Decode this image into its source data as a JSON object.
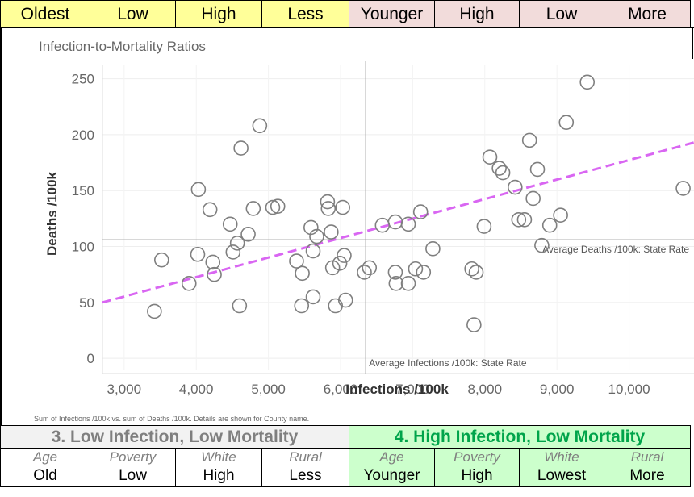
{
  "top_legend": [
    {
      "label": "Oldest",
      "color": "yellow"
    },
    {
      "label": "Low",
      "color": "yellow"
    },
    {
      "label": "High",
      "color": "yellow"
    },
    {
      "label": "Less",
      "color": "yellow"
    },
    {
      "label": "Younger",
      "color": "pink"
    },
    {
      "label": "High",
      "color": "pink"
    },
    {
      "label": "Low",
      "color": "pink"
    },
    {
      "label": "More",
      "color": "pink"
    }
  ],
  "colors": {
    "yellow": "#ffff99",
    "pink": "#f2dcdb",
    "quad3_bg": "#f2f2f2",
    "quad4_bg": "#ccffcc",
    "quad4_title": "#00a44a",
    "trend": "#d966f2",
    "marker": "#7f7f7f"
  },
  "chart_data": {
    "type": "scatter",
    "title": "Infection-to-Mortality Ratios",
    "xlabel": "Infections /100k",
    "ylabel": "Deaths /100k",
    "xlim": [
      2700,
      10900
    ],
    "ylim": [
      -10,
      262
    ],
    "xticks": [
      3000,
      4000,
      5000,
      6000,
      7000,
      8000,
      9000,
      10000
    ],
    "xtick_labels": [
      "3,000",
      "4,000",
      "5,000",
      "6,000",
      "7,000",
      "8,000",
      "9,000",
      "10,000"
    ],
    "yticks": [
      0,
      50,
      100,
      150,
      200,
      250
    ],
    "ytick_labels": [
      "0",
      "50",
      "100",
      "150",
      "200",
      "250"
    ],
    "ref_x": 6350,
    "ref_y": 106,
    "ref_x_label": "Average Infections /100k: State Rate",
    "ref_y_label": "Average Deaths /100k: State Rate",
    "trend": {
      "x0": 2700,
      "y0": 50,
      "x1": 10900,
      "y1": 193
    },
    "footnote": "Sum of Infections /100k vs. sum of Deaths /100k.  Details are shown for County name.",
    "points": [
      {
        "x": 3420,
        "y": 42
      },
      {
        "x": 3520,
        "y": 88
      },
      {
        "x": 3900,
        "y": 67
      },
      {
        "x": 4020,
        "y": 93
      },
      {
        "x": 4030,
        "y": 151
      },
      {
        "x": 4190,
        "y": 133
      },
      {
        "x": 4230,
        "y": 86
      },
      {
        "x": 4250,
        "y": 75
      },
      {
        "x": 4470,
        "y": 120
      },
      {
        "x": 4510,
        "y": 95
      },
      {
        "x": 4570,
        "y": 103
      },
      {
        "x": 4600,
        "y": 47
      },
      {
        "x": 4620,
        "y": 188
      },
      {
        "x": 4720,
        "y": 111
      },
      {
        "x": 4790,
        "y": 134
      },
      {
        "x": 4880,
        "y": 208
      },
      {
        "x": 5060,
        "y": 135
      },
      {
        "x": 5130,
        "y": 136
      },
      {
        "x": 5390,
        "y": 87
      },
      {
        "x": 5460,
        "y": 47
      },
      {
        "x": 5470,
        "y": 76
      },
      {
        "x": 5590,
        "y": 117
      },
      {
        "x": 5620,
        "y": 55
      },
      {
        "x": 5620,
        "y": 96
      },
      {
        "x": 5670,
        "y": 109
      },
      {
        "x": 5820,
        "y": 140
      },
      {
        "x": 5830,
        "y": 134
      },
      {
        "x": 5870,
        "y": 113
      },
      {
        "x": 5890,
        "y": 81
      },
      {
        "x": 5930,
        "y": 47
      },
      {
        "x": 5990,
        "y": 85
      },
      {
        "x": 6030,
        "y": 135
      },
      {
        "x": 6050,
        "y": 92
      },
      {
        "x": 6070,
        "y": 52
      },
      {
        "x": 6330,
        "y": 77
      },
      {
        "x": 6400,
        "y": 81
      },
      {
        "x": 6580,
        "y": 119
      },
      {
        "x": 6760,
        "y": 122
      },
      {
        "x": 6760,
        "y": 77
      },
      {
        "x": 6770,
        "y": 67
      },
      {
        "x": 6940,
        "y": 67
      },
      {
        "x": 6940,
        "y": 120
      },
      {
        "x": 7040,
        "y": 80
      },
      {
        "x": 7110,
        "y": 131
      },
      {
        "x": 7150,
        "y": 77
      },
      {
        "x": 7280,
        "y": 98
      },
      {
        "x": 7820,
        "y": 80
      },
      {
        "x": 7880,
        "y": 77
      },
      {
        "x": 7850,
        "y": 30
      },
      {
        "x": 7990,
        "y": 118
      },
      {
        "x": 8070,
        "y": 180
      },
      {
        "x": 8200,
        "y": 170
      },
      {
        "x": 8250,
        "y": 166
      },
      {
        "x": 8420,
        "y": 153
      },
      {
        "x": 8470,
        "y": 124
      },
      {
        "x": 8550,
        "y": 124
      },
      {
        "x": 8620,
        "y": 195
      },
      {
        "x": 8670,
        "y": 143
      },
      {
        "x": 8730,
        "y": 169
      },
      {
        "x": 8790,
        "y": 101
      },
      {
        "x": 8900,
        "y": 119
      },
      {
        "x": 9050,
        "y": 128
      },
      {
        "x": 9130,
        "y": 211
      },
      {
        "x": 9420,
        "y": 247
      },
      {
        "x": 10750,
        "y": 152
      }
    ]
  },
  "quadrant3": {
    "title": "3. Low Infection, Low Mortality",
    "headers": [
      "Age",
      "Poverty",
      "White",
      "Rural"
    ],
    "values": [
      "Old",
      "Low",
      "High",
      "Less"
    ]
  },
  "quadrant4": {
    "title": "4. High Infection, Low Mortality",
    "headers": [
      "Age",
      "Poverty",
      "White",
      "Rural"
    ],
    "values": [
      "Younger",
      "High",
      "Lowest",
      "More"
    ]
  }
}
